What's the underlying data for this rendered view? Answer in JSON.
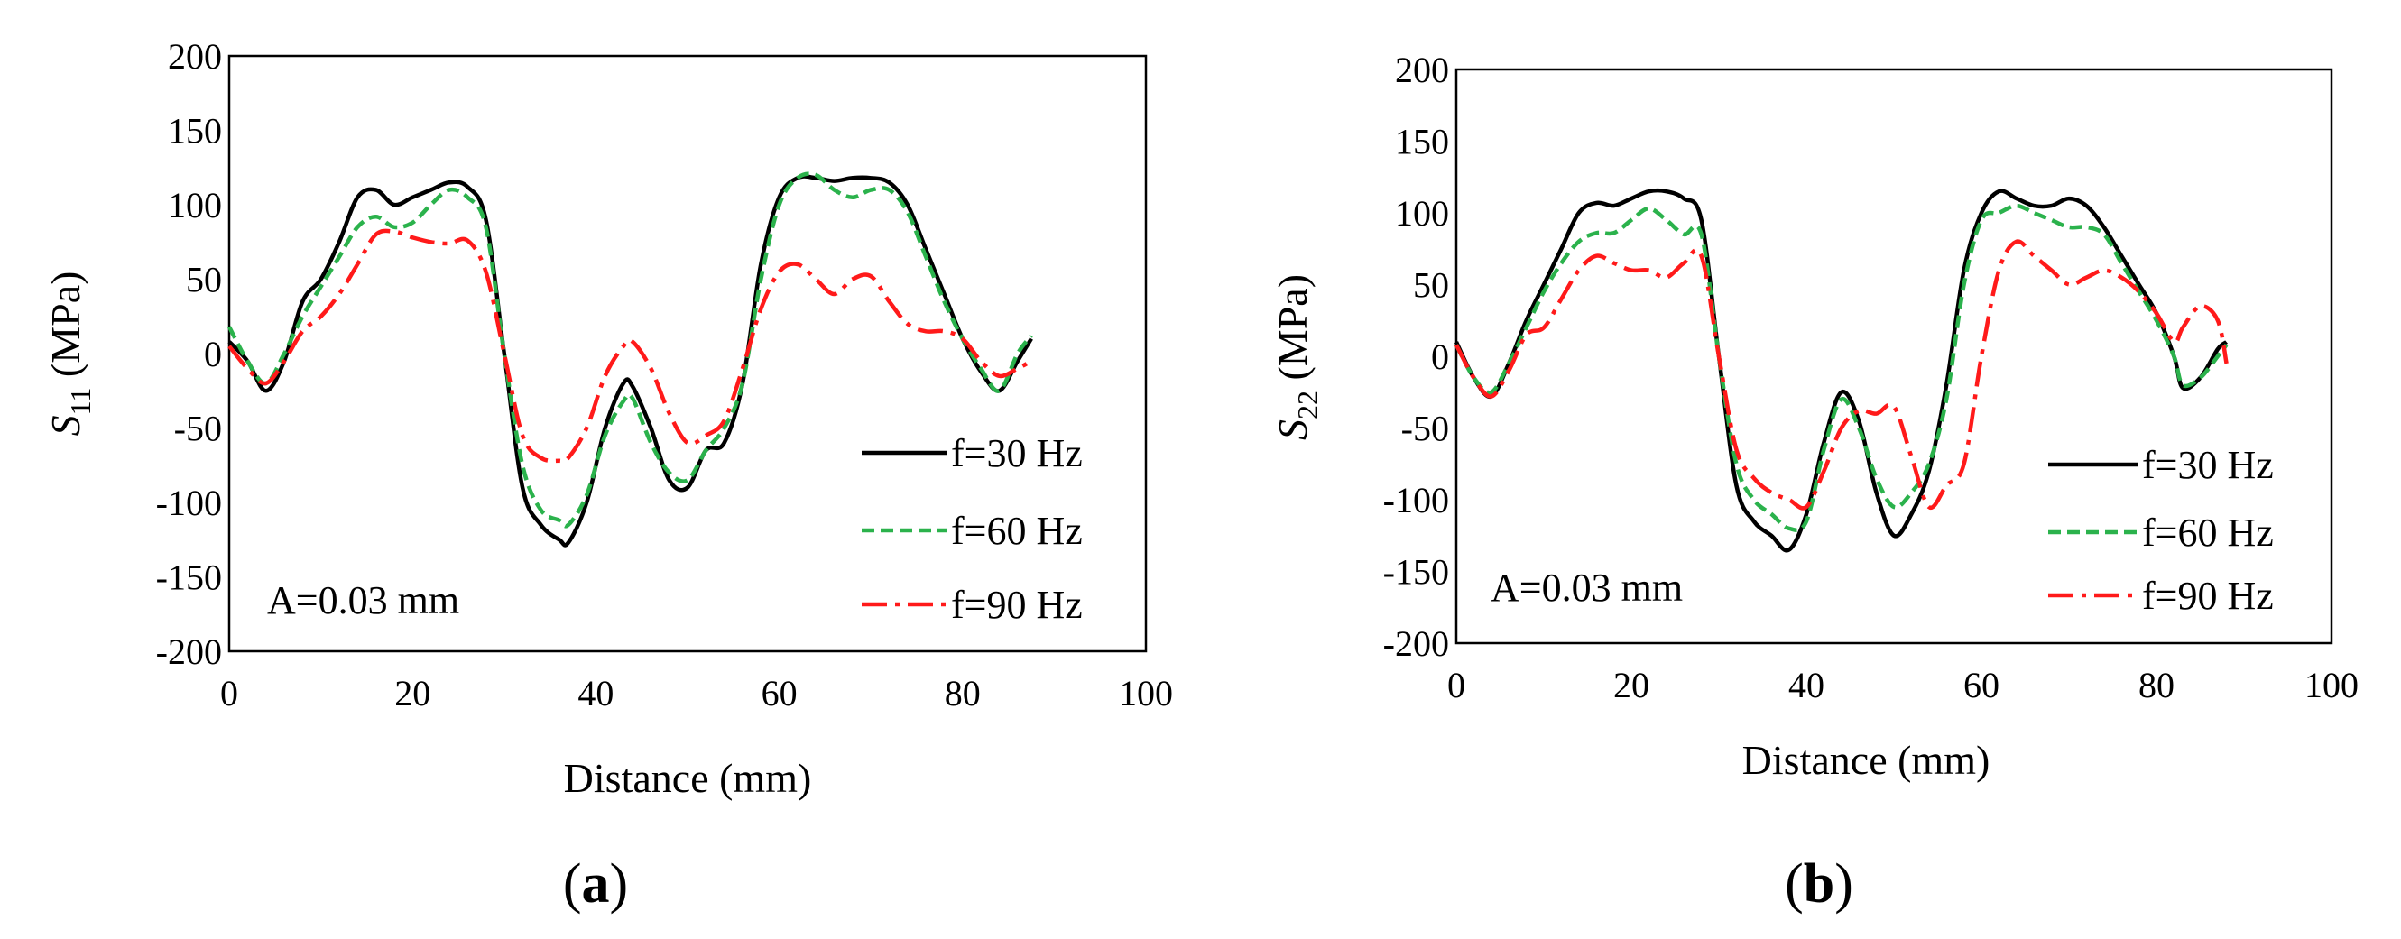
{
  "chart_data": [
    {
      "type": "line",
      "panel_label": "a",
      "ylabel_symbol": "S",
      "ylabel_sub": "11",
      "ylabel_unit": " (MPa)",
      "xlabel": "Distance (mm)",
      "xlim": [
        0,
        100
      ],
      "ylim": [
        -200,
        200
      ],
      "xticks": [
        0,
        20,
        40,
        60,
        80,
        100
      ],
      "yticks": [
        200,
        150,
        100,
        50,
        0,
        -50,
        -100,
        -150,
        -200
      ],
      "grid": false,
      "legend_position": "bottom-right",
      "annotation": "A=0.03 mm",
      "series": [
        {
          "name": "f=30 Hz",
          "color": "#000000",
          "style": "solid",
          "x": [
            0,
            2,
            4,
            6,
            8,
            10,
            12,
            14,
            16,
            18,
            20,
            22,
            24,
            26,
            28,
            30,
            32,
            34,
            36,
            37,
            39,
            41,
            43,
            44,
            46,
            48,
            50,
            52,
            54,
            56,
            58,
            60,
            62,
            64,
            66,
            68,
            70,
            72,
            74,
            76,
            78,
            80,
            82,
            84,
            86,
            87.5
          ],
          "y": [
            8,
            -5,
            -25,
            -5,
            35,
            50,
            75,
            105,
            110,
            100,
            105,
            110,
            115,
            112,
            90,
            0,
            -90,
            -115,
            -125,
            -127,
            -100,
            -50,
            -20,
            -22,
            -50,
            -85,
            -90,
            -65,
            -60,
            -20,
            60,
            105,
            118,
            118,
            116,
            118,
            118,
            115,
            100,
            70,
            40,
            10,
            -12,
            -25,
            -5,
            10
          ]
        },
        {
          "name": "f=60 Hz",
          "color": "#2bb24c",
          "style": "dashed",
          "x": [
            0,
            2,
            4,
            6,
            8,
            10,
            12,
            14,
            16,
            18,
            20,
            22,
            24,
            26,
            28,
            30,
            32,
            34,
            36,
            37,
            39,
            41,
            43,
            44,
            46,
            48,
            50,
            52,
            54,
            56,
            58,
            60,
            62,
            64,
            66,
            68,
            70,
            72,
            74,
            76,
            78,
            80,
            82,
            84,
            86,
            87.5
          ],
          "y": [
            18,
            -5,
            -20,
            0,
            25,
            45,
            65,
            85,
            92,
            85,
            88,
            100,
            110,
            105,
            85,
            0,
            -75,
            -105,
            -112,
            -115,
            -95,
            -55,
            -32,
            -30,
            -60,
            -80,
            -85,
            -65,
            -50,
            -20,
            50,
            100,
            118,
            120,
            110,
            105,
            110,
            110,
            95,
            65,
            35,
            10,
            -10,
            -25,
            0,
            12
          ]
        },
        {
          "name": "f=90 Hz",
          "color": "#ff1a1a",
          "style": "dashdot",
          "x": [
            0,
            2,
            4,
            6,
            8,
            10,
            12,
            14,
            16,
            18,
            20,
            22,
            24,
            26,
            28,
            30,
            32,
            34,
            36,
            37,
            39,
            41,
            43,
            44,
            46,
            48,
            50,
            52,
            54,
            56,
            58,
            60,
            62,
            64,
            66,
            68,
            70,
            72,
            74,
            76,
            78,
            80,
            82,
            84,
            86,
            87.5
          ],
          "y": [
            5,
            -10,
            -20,
            -5,
            15,
            25,
            40,
            60,
            80,
            82,
            78,
            75,
            74,
            76,
            55,
            0,
            -55,
            -70,
            -72,
            -70,
            -50,
            -15,
            5,
            8,
            -10,
            -40,
            -60,
            -55,
            -45,
            -10,
            30,
            55,
            60,
            50,
            40,
            50,
            52,
            35,
            20,
            15,
            15,
            10,
            -5,
            -15,
            -10,
            -5
          ]
        }
      ]
    },
    {
      "type": "line",
      "panel_label": "b",
      "ylabel_symbol": "S",
      "ylabel_sub": "22",
      "ylabel_unit": " (MPa)",
      "xlabel": "Distance (mm)",
      "xlim": [
        0,
        100
      ],
      "ylim": [
        -200,
        200
      ],
      "xticks": [
        0,
        20,
        40,
        60,
        80,
        100
      ],
      "yticks": [
        200,
        150,
        100,
        50,
        0,
        -50,
        -100,
        -150,
        -200
      ],
      "grid": false,
      "legend_position": "bottom-right",
      "annotation": "A=0.03 mm",
      "series": [
        {
          "name": "f=30 Hz",
          "color": "#000000",
          "style": "solid",
          "x": [
            0,
            2,
            4,
            6,
            8,
            10,
            12,
            14,
            16,
            18,
            20,
            22,
            24,
            26,
            28,
            30,
            32,
            34,
            36,
            38,
            40,
            42,
            44,
            46,
            48,
            50,
            52,
            54,
            56,
            58,
            60,
            62,
            64,
            66,
            68,
            70,
            72,
            74,
            76,
            78,
            80,
            82,
            83,
            85,
            87,
            88
          ],
          "y": [
            10,
            -15,
            -28,
            -5,
            25,
            50,
            75,
            100,
            107,
            105,
            110,
            115,
            115,
            110,
            95,
            0,
            -90,
            -115,
            -125,
            -135,
            -110,
            -60,
            -25,
            -45,
            -95,
            -125,
            -110,
            -80,
            -20,
            60,
            100,
            115,
            110,
            105,
            105,
            110,
            105,
            90,
            70,
            50,
            30,
            0,
            -22,
            -15,
            5,
            10
          ]
        },
        {
          "name": "f=60 Hz",
          "color": "#2bb24c",
          "style": "dashed",
          "x": [
            0,
            2,
            4,
            6,
            8,
            10,
            12,
            14,
            16,
            18,
            20,
            22,
            24,
            26,
            28,
            30,
            32,
            34,
            36,
            38,
            40,
            42,
            44,
            46,
            48,
            50,
            52,
            54,
            56,
            58,
            60,
            62,
            64,
            66,
            68,
            70,
            72,
            74,
            76,
            78,
            80,
            82,
            83,
            85,
            87,
            88
          ],
          "y": [
            8,
            -15,
            -25,
            -5,
            20,
            45,
            65,
            80,
            86,
            86,
            95,
            103,
            95,
            85,
            85,
            0,
            -75,
            -100,
            -110,
            -120,
            -115,
            -65,
            -30,
            -50,
            -85,
            -105,
            -95,
            -75,
            -30,
            50,
            95,
            100,
            105,
            100,
            95,
            90,
            90,
            85,
            65,
            45,
            25,
            0,
            -20,
            -15,
            0,
            8
          ]
        },
        {
          "name": "f=90 Hz",
          "color": "#ff1a1a",
          "style": "dashdot",
          "x": [
            0,
            2,
            4,
            6,
            8,
            10,
            12,
            14,
            16,
            18,
            20,
            22,
            24,
            26,
            28,
            30,
            32,
            34,
            36,
            38,
            40,
            42,
            44,
            46,
            48,
            50,
            52,
            54,
            56,
            58,
            60,
            62,
            64,
            66,
            68,
            70,
            72,
            74,
            76,
            78,
            80,
            82,
            83,
            85,
            87,
            88
          ],
          "y": [
            8,
            -15,
            -28,
            -10,
            15,
            20,
            40,
            60,
            70,
            65,
            60,
            60,
            55,
            65,
            70,
            0,
            -65,
            -85,
            -95,
            -100,
            -105,
            -80,
            -50,
            -38,
            -40,
            -35,
            -70,
            -105,
            -90,
            -75,
            0,
            60,
            80,
            70,
            60,
            50,
            55,
            60,
            55,
            45,
            30,
            10,
            20,
            35,
            25,
            -5
          ]
        }
      ]
    }
  ]
}
